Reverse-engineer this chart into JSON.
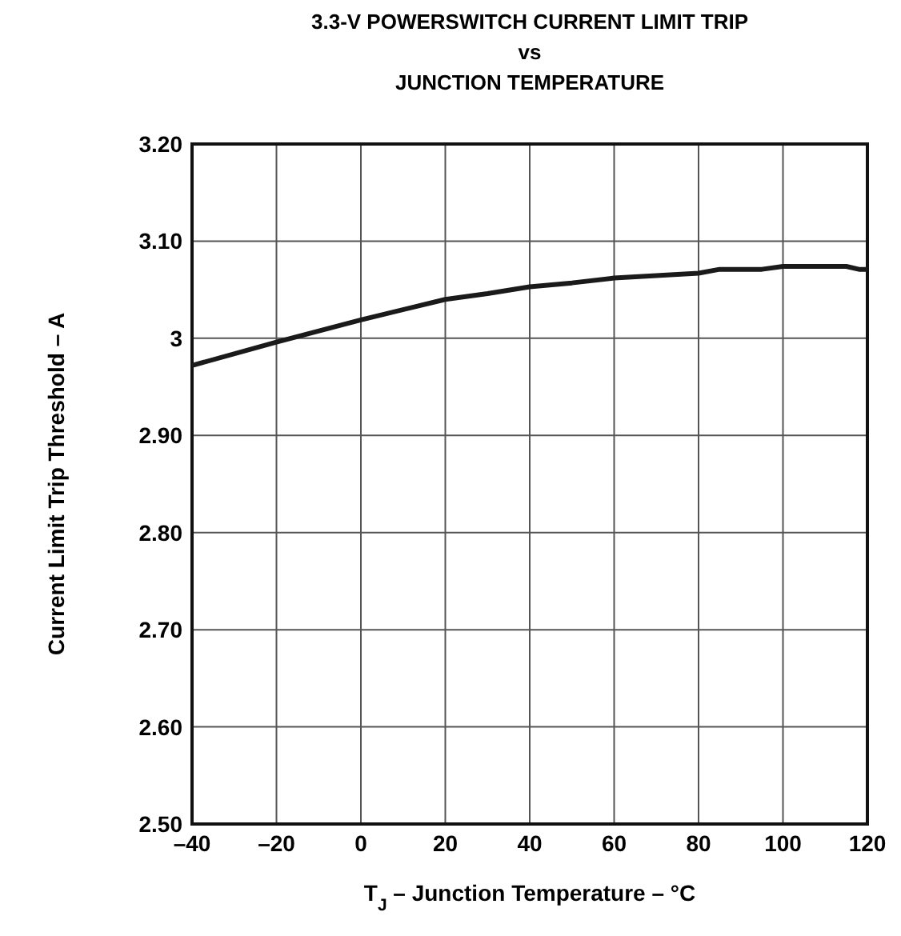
{
  "chart_data": {
    "type": "line",
    "title": "3.3-V POWERSWITCH CURRENT LIMIT TRIP\nvs\nJUNCTION TEMPERATURE",
    "xlabel": "T$_{J}$ – Junction Temperature – °C",
    "ylabel": "Current Limit Trip Threshold – A",
    "x": [
      -40,
      -20,
      0,
      20,
      30,
      40,
      50,
      60,
      80,
      85,
      95,
      100,
      115,
      118,
      120
    ],
    "series": [
      {
        "color": "#1a1a1a",
        "values": [
          2.972,
          2.996,
          3.019,
          3.04,
          3.046,
          3.053,
          3.057,
          3.062,
          3.067,
          3.071,
          3.071,
          3.074,
          3.074,
          3.071,
          3.071
        ]
      }
    ],
    "xlim": [
      -40,
      120
    ],
    "xticks": [
      {
        "value": -40,
        "label": "–40"
      },
      {
        "value": -20,
        "label": "–20"
      },
      0,
      20,
      40,
      60,
      80,
      100,
      120
    ],
    "ylim": [
      2.5,
      3.2
    ],
    "yticks": [
      {
        "value": 2.5,
        "label": "2.50"
      },
      {
        "value": 2.6,
        "label": "2.60"
      },
      {
        "value": 2.7,
        "label": "2.70"
      },
      {
        "value": 2.8,
        "label": "2.80"
      },
      {
        "value": 2.9,
        "label": "2.90"
      },
      3,
      {
        "value": 3.1,
        "label": "3.10"
      },
      {
        "value": 3.2,
        "label": "3.20"
      }
    ],
    "grid": true,
    "line_style": "solid",
    "marker": "none"
  }
}
